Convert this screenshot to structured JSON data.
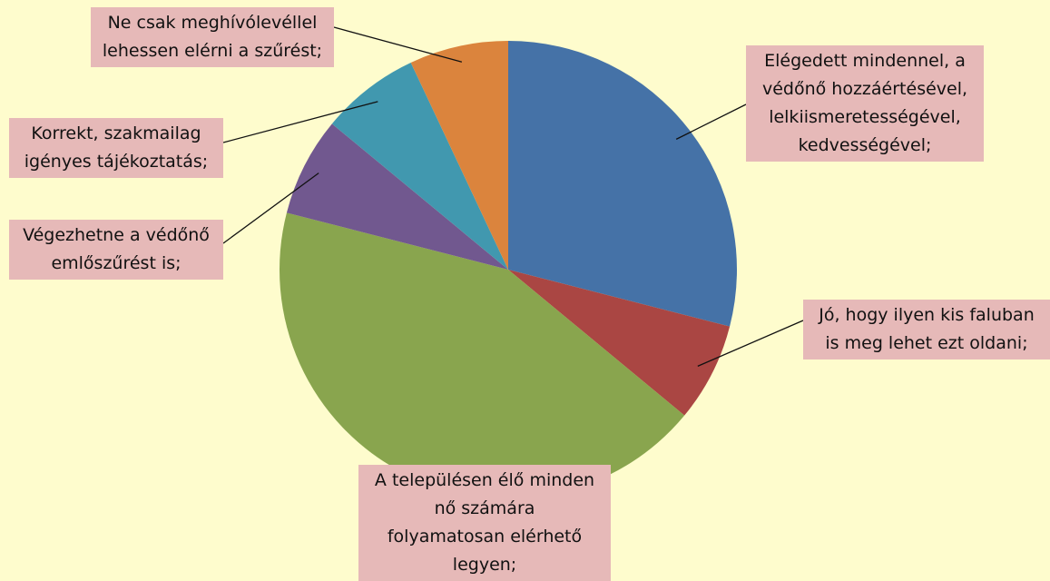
{
  "chart_data": {
    "type": "pie",
    "categories": [
      "Elégedett mindennel, a\nvédőnő hozzáértésével,\nlelkiismeretességével,\nkedvességével;",
      "Jó, hogy ilyen kis faluban\nis meg lehet ezt oldani;",
      "A településen élő minden\nnő számára\nfolyamatosan elérhető\nlegyen;",
      "Végezhetne a védőnő\nemlőszűrést is;",
      "Korrekt, szakmailag\nigényes tájékoztatás;",
      "Ne csak meghívólevéllel\nlehessen elérni a szűrést;"
    ],
    "values": [
      29,
      7,
      43,
      7,
      7,
      7
    ],
    "colors": [
      "#4572a7",
      "#aa4643",
      "#89a54e",
      "#71588f",
      "#4198af",
      "#db843d"
    ]
  }
}
